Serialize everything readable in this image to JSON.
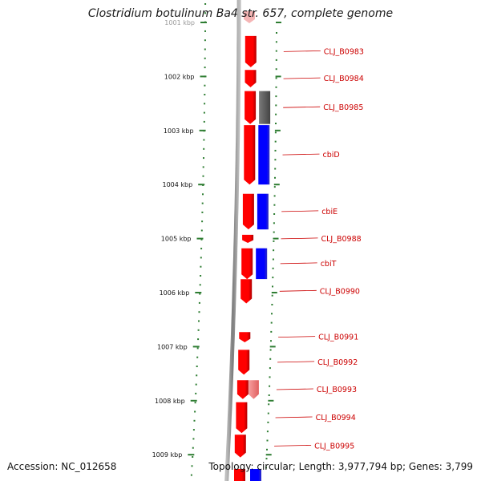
{
  "title": "Clostridium botulinum Ba4 str. 657, complete genome",
  "accession": "Accession: NC_012658",
  "topology": "Topology: circular; Length: 3,977,794 bp; Genes: 3,799",
  "colors": {
    "forward_gene": "#ff0000",
    "reverse_gene": "#0000ff",
    "other_feature": "#666666",
    "faded_gene": "#f08080",
    "backbone": "#8c8c8c",
    "scale_ticks": "#2e7d32",
    "gene_label": "#cc0000"
  },
  "scale_labels": [
    {
      "kbp": 1001,
      "label": "1001 kbp"
    },
    {
      "kbp": 1002,
      "label": "1002 kbp"
    },
    {
      "kbp": 1003,
      "label": "1003 kbp"
    },
    {
      "kbp": 1004,
      "label": "1004 kbp"
    },
    {
      "kbp": 1005,
      "label": "1005 kbp"
    },
    {
      "kbp": 1006,
      "label": "1006 kbp"
    },
    {
      "kbp": 1007,
      "label": "1007 kbp"
    },
    {
      "kbp": 1008,
      "label": "1008 kbp"
    },
    {
      "kbp": 1009,
      "label": "1009 kbp"
    }
  ],
  "features": [
    {
      "label": "CLJ_B0983",
      "strand": "forward",
      "start_kbp": 1001.25,
      "end_kbp": 1001.83,
      "type": "gene"
    },
    {
      "label": "CLJ_B0984",
      "strand": "forward",
      "start_kbp": 1001.88,
      "end_kbp": 1002.2,
      "type": "gene"
    },
    {
      "label": "CLJ_B0985",
      "strand": "forward",
      "start_kbp": 1002.27,
      "end_kbp": 1002.88,
      "type": "gene"
    },
    {
      "label": "",
      "strand": "reverse",
      "start_kbp": 1002.27,
      "end_kbp": 1002.88,
      "type": "other"
    },
    {
      "label": "cbiD",
      "strand": "forward",
      "start_kbp": 1002.9,
      "end_kbp": 1004.0,
      "type": "gene"
    },
    {
      "label": "",
      "strand": "reverse",
      "start_kbp": 1002.9,
      "end_kbp": 1004.0,
      "type": "gene"
    },
    {
      "label": "cbiE",
      "strand": "forward",
      "start_kbp": 1004.17,
      "end_kbp": 1004.83,
      "type": "gene"
    },
    {
      "label": "",
      "strand": "reverse",
      "start_kbp": 1004.17,
      "end_kbp": 1004.83,
      "type": "gene"
    },
    {
      "label": "CLJ_B0988",
      "strand": "forward",
      "start_kbp": 1004.93,
      "end_kbp": 1005.08,
      "type": "gene"
    },
    {
      "label": "cbiT",
      "strand": "forward",
      "start_kbp": 1005.18,
      "end_kbp": 1005.75,
      "type": "gene"
    },
    {
      "label": "",
      "strand": "reverse",
      "start_kbp": 1005.18,
      "end_kbp": 1005.75,
      "type": "gene"
    },
    {
      "label": "CLJ_B0990",
      "strand": "forward",
      "start_kbp": 1005.75,
      "end_kbp": 1006.2,
      "type": "gene"
    },
    {
      "label": "CLJ_B0991",
      "strand": "forward",
      "start_kbp": 1006.73,
      "end_kbp": 1006.92,
      "type": "gene"
    },
    {
      "label": "CLJ_B0992",
      "strand": "forward",
      "start_kbp": 1007.06,
      "end_kbp": 1007.52,
      "type": "gene"
    },
    {
      "label": "CLJ_B0993",
      "strand": "forward",
      "start_kbp": 1007.62,
      "end_kbp": 1007.97,
      "type": "gene"
    },
    {
      "label": "",
      "strand": "forward_outer",
      "start_kbp": 1007.62,
      "end_kbp": 1007.97,
      "type": "faded"
    },
    {
      "label": "CLJ_B0994",
      "strand": "forward",
      "start_kbp": 1008.03,
      "end_kbp": 1008.6,
      "type": "gene"
    },
    {
      "label": "CLJ_B0995",
      "strand": "forward",
      "start_kbp": 1008.63,
      "end_kbp": 1009.05,
      "type": "gene"
    }
  ]
}
